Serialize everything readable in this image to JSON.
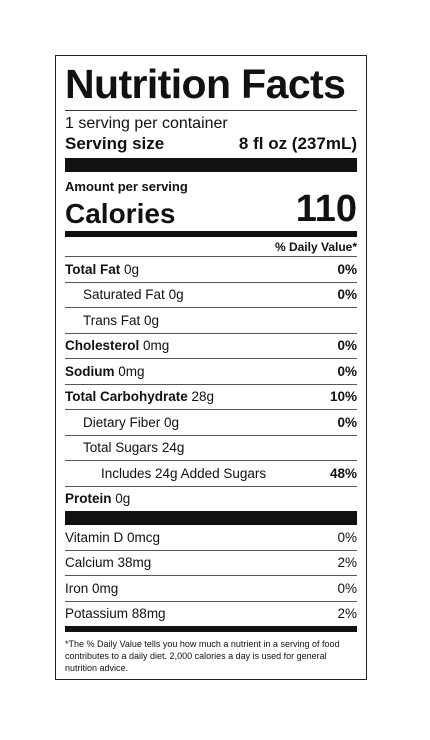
{
  "label": {
    "title": "Nutrition Facts",
    "servings_per_container": "1 serving per container",
    "serving_size_label": "Serving size",
    "serving_size_value": "8 fl oz (237mL)",
    "amount_per_serving": "Amount per serving",
    "calories_label": "Calories",
    "calories_value": "110",
    "daily_value_header": "% Daily Value*",
    "nutrients": [
      {
        "name": "Total Fat",
        "amount": "0g",
        "dv": "0%"
      },
      {
        "name": "Saturated Fat",
        "amount": "0g",
        "dv": "0%"
      },
      {
        "name": "Trans Fat",
        "amount": "0g",
        "dv": ""
      },
      {
        "name": "Cholesterol",
        "amount": "0mg",
        "dv": "0%"
      },
      {
        "name": "Sodium",
        "amount": "0mg",
        "dv": "0%"
      },
      {
        "name": "Total Carbohydrate",
        "amount": "28g",
        "dv": "10%"
      },
      {
        "name": "Dietary Fiber",
        "amount": "0g",
        "dv": "0%"
      },
      {
        "name": "Total Sugars",
        "amount": "24g",
        "dv": ""
      },
      {
        "name": "Includes 24g Added Sugars",
        "amount": "",
        "dv": "48%"
      },
      {
        "name": "Protein",
        "amount": "0g",
        "dv": ""
      }
    ],
    "vitamins": [
      {
        "name": "Vitamin D",
        "amount": "0mcg",
        "dv": "0%"
      },
      {
        "name": "Calcium",
        "amount": "38mg",
        "dv": "2%"
      },
      {
        "name": "Iron",
        "amount": "0mg",
        "dv": "0%"
      },
      {
        "name": "Potassium",
        "amount": "88mg",
        "dv": "2%"
      }
    ],
    "footnote": "*The % Daily Value tells you how much a nutrient in a serving of food contributes to a daily diet. 2,000 calories a day is used for general nutrition advice."
  }
}
